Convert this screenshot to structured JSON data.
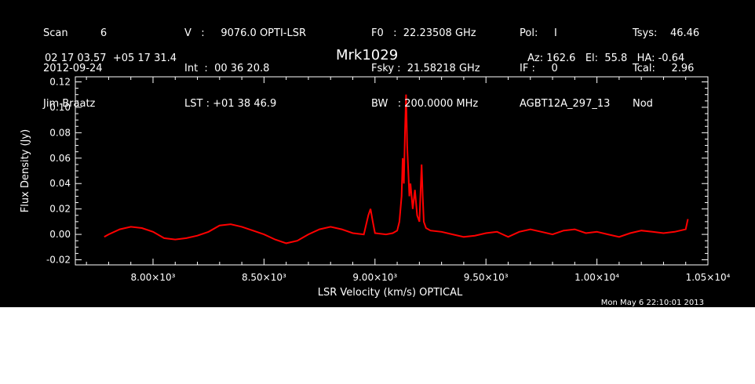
{
  "header": {
    "col1": [
      "Scan          6",
      "2012-09-24",
      "Jim Braatz"
    ],
    "col2": [
      "V   :     9076.0 OPTI-LSR",
      "Int  :  00 36 20.8",
      "LST : +01 38 46.9"
    ],
    "col3": [
      "F0   :  22.23508 GHz",
      "Fsky :  21.58218 GHz",
      "BW   : 200.0000 MHz"
    ],
    "col4": [
      "Pol:     I",
      "IF :     0",
      "AGBT12A_297_13"
    ],
    "col5": [
      "Tsys:    46.46",
      "Tcal:     2.96",
      "Nod"
    ],
    "coords": "02 17 03.57  +05 17 31.4",
    "source": "Mrk1029",
    "azel": "Az: 162.6   El:  55.8   HA: -0.64",
    "timestamp": "Mon May  6 22:10:01 2013"
  },
  "colors": {
    "background": "#000000",
    "axes": "#ffffff",
    "trace": "#ff0000"
  },
  "chart_data": {
    "type": "line",
    "title": "Mrk1029",
    "xlabel": "LSR Velocity (km/s) OPTICAL",
    "ylabel": "Flux Density (Jy)",
    "xlim": [
      7650,
      10500
    ],
    "ylim": [
      -0.024,
      0.124
    ],
    "x_ticks": [
      8000,
      8500,
      9000,
      9500,
      10000,
      10500
    ],
    "x_tick_labels": [
      "8.00×10³",
      "8.50×10³",
      "9.00×10³",
      "9.50×10³",
      "1.00×10⁴",
      "1.05×10⁴"
    ],
    "y_ticks": [
      -0.02,
      0.0,
      0.02,
      0.04,
      0.06,
      0.08,
      0.1,
      0.12
    ],
    "y_tick_labels": [
      "-0.02",
      "0.00",
      "0.02",
      "0.04",
      "0.06",
      "0.08",
      "0.10",
      "0.12"
    ],
    "grid": false,
    "series": [
      {
        "x": [
          7780,
          7800,
          7850,
          7900,
          7950,
          8000,
          8050,
          8100,
          8150,
          8200,
          8250,
          8300,
          8350,
          8400,
          8450,
          8500,
          8550,
          8600,
          8650,
          8700,
          8750,
          8800,
          8850,
          8900,
          8950,
          8970,
          8980,
          8990,
          9000,
          9050,
          9080,
          9100,
          9110,
          9120,
          9125,
          9130,
          9135,
          9140,
          9145,
          9150,
          9155,
          9160,
          9170,
          9180,
          9190,
          9200,
          9210,
          9215,
          9220,
          9230,
          9250,
          9300,
          9350,
          9400,
          9450,
          9500,
          9550,
          9600,
          9650,
          9700,
          9750,
          9800,
          9850,
          9900,
          9950,
          10000,
          10050,
          10100,
          10150,
          10200,
          10250,
          10300,
          10350,
          10400,
          10410
        ],
        "y": [
          -0.002,
          0.0,
          0.004,
          0.006,
          0.005,
          0.002,
          -0.003,
          -0.004,
          -0.003,
          -0.001,
          0.002,
          0.007,
          0.008,
          0.006,
          0.003,
          0.0,
          -0.004,
          -0.007,
          -0.005,
          0.0,
          0.004,
          0.006,
          0.004,
          0.001,
          0.0,
          0.015,
          0.02,
          0.01,
          0.001,
          0.0,
          0.001,
          0.003,
          0.01,
          0.03,
          0.06,
          0.04,
          0.08,
          0.11,
          0.07,
          0.05,
          0.03,
          0.04,
          0.02,
          0.035,
          0.015,
          0.01,
          0.055,
          0.03,
          0.01,
          0.005,
          0.003,
          0.002,
          0.0,
          -0.002,
          -0.001,
          0.001,
          0.002,
          -0.002,
          0.002,
          0.004,
          0.002,
          0.0,
          0.003,
          0.004,
          0.001,
          0.002,
          0.0,
          -0.002,
          0.001,
          0.003,
          0.002,
          0.001,
          0.002,
          0.004,
          0.012
        ]
      }
    ]
  }
}
